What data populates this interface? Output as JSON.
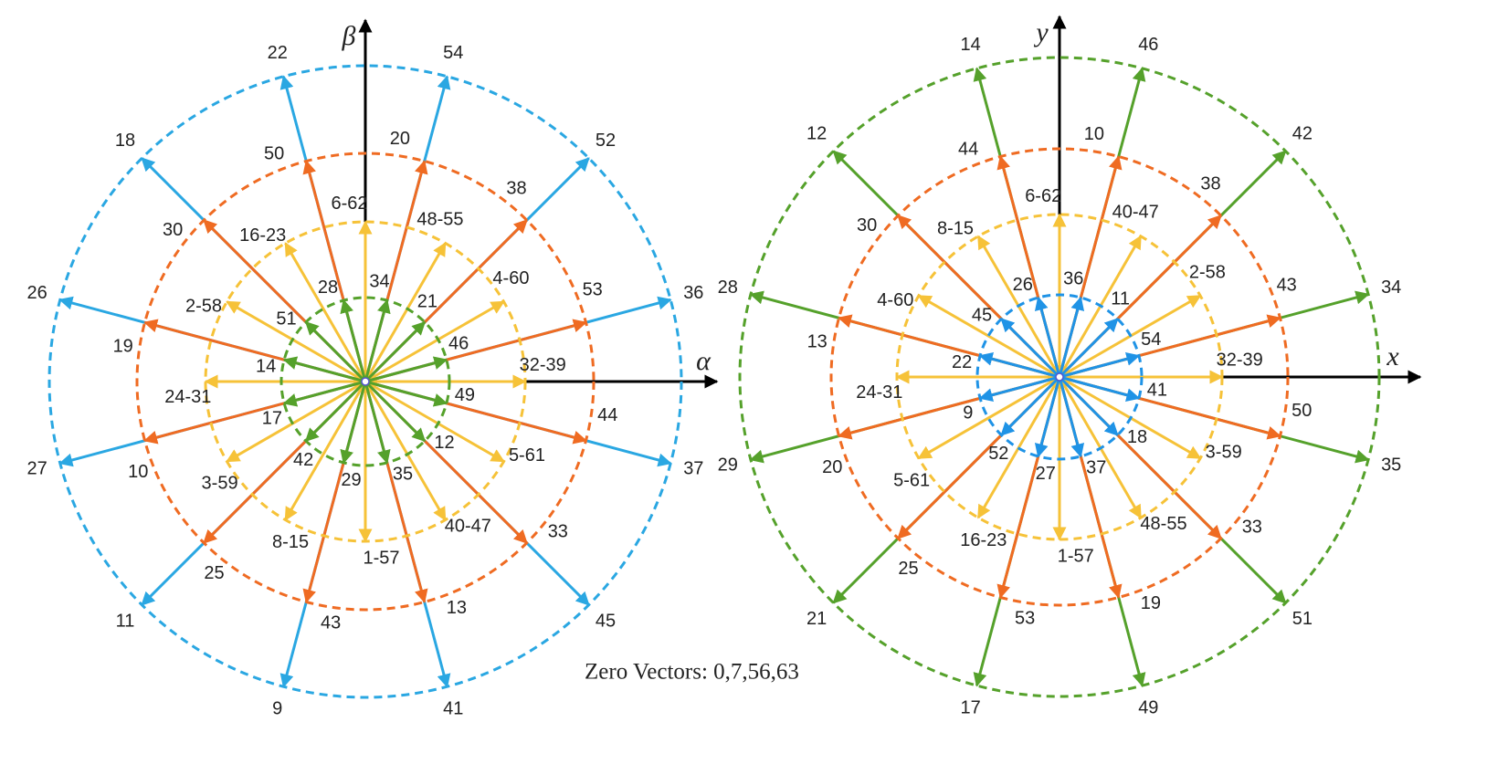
{
  "diagrams": [
    {
      "axis_x": "α",
      "axis_y": "β",
      "rings": [
        {
          "color": "#2aa7e2",
          "vectors": [
            "36",
            "52",
            "54",
            "22",
            "18",
            "26",
            "27",
            "11",
            "9",
            "41",
            "45",
            "37"
          ]
        },
        {
          "color": "#ef6b22",
          "vectors": [
            "53",
            "38",
            "20",
            "50",
            "30",
            "19",
            "10",
            "25",
            "43",
            "13",
            "33",
            "44"
          ]
        },
        {
          "color": "#f6c238",
          "vectors": [
            "32-39",
            "4-60",
            "48-55",
            "6-62",
            "16-23",
            "2-58",
            "24-31",
            "3-59",
            "8-15",
            "1-57",
            "40-47",
            "5-61"
          ]
        },
        {
          "color": "#55a12b",
          "vectors": [
            "46",
            "21",
            "34",
            "28",
            "51",
            "14",
            "17",
            "42",
            "29",
            "35",
            "12",
            "49"
          ]
        }
      ]
    },
    {
      "axis_x": "x",
      "axis_y": "y",
      "rings": [
        {
          "color": "#55a12b",
          "vectors": [
            "34",
            "42",
            "46",
            "14",
            "12",
            "28",
            "29",
            "21",
            "17",
            "49",
            "51",
            "35"
          ]
        },
        {
          "color": "#ef6b22",
          "vectors": [
            "43",
            "38",
            "10",
            "44",
            "30",
            "13",
            "20",
            "25",
            "53",
            "19",
            "33",
            "50"
          ]
        },
        {
          "color": "#f6c238",
          "vectors": [
            "32-39",
            "2-58",
            "40-47",
            "6-62",
            "8-15",
            "4-60",
            "24-31",
            "5-61",
            "16-23",
            "1-57",
            "48-55",
            "3-59"
          ]
        },
        {
          "color": "#1f93e6",
          "vectors": [
            "54",
            "11",
            "36",
            "26",
            "45",
            "22",
            "9",
            "52",
            "27",
            "37",
            "18",
            "41"
          ]
        }
      ]
    }
  ],
  "zero_vectors": "Zero Vectors: 0,7,56,63"
}
